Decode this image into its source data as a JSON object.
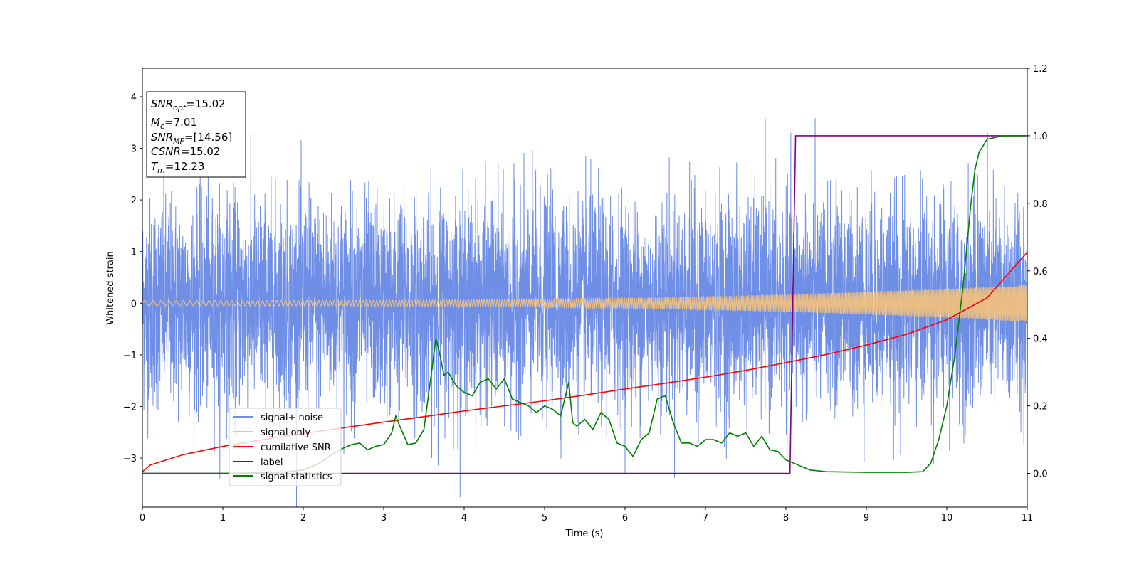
{
  "chart_data": {
    "type": "line",
    "xlabel": "Time (s)",
    "ylabel": "Whitened strain",
    "xlim": [
      0,
      11
    ],
    "ylim_left": [
      -3.95,
      4.55
    ],
    "ylim_right": [
      -0.1,
      1.2
    ],
    "x_ticks": [
      0,
      1,
      2,
      3,
      4,
      5,
      6,
      7,
      8,
      9,
      10,
      11
    ],
    "y_left_ticks": [
      -3,
      -2,
      -1,
      0,
      1,
      2,
      3,
      4
    ],
    "y_right_ticks": [
      0.0,
      0.2,
      0.4,
      0.6,
      0.8,
      1.0,
      1.2
    ],
    "legend_position": "lower-left",
    "info_box": {
      "position": "upper-left",
      "lines": [
        {
          "sym": "SNR",
          "sub": "opt",
          "rest": "=15.02"
        },
        {
          "sym": "M",
          "sub": "c",
          "rest": "=7.01"
        },
        {
          "sym": "SNR",
          "sub": "MF",
          "rest": "=[14.56]"
        },
        {
          "sym": "CSNR",
          "sub": "",
          "rest": "=15.02"
        },
        {
          "sym": "T",
          "sub": "m",
          "rest": "=12.23"
        }
      ]
    },
    "series": [
      {
        "name": "signal+ noise",
        "axis": "left",
        "color": "#6f8ee6",
        "description_kind": "noise",
        "sigma": 1.0
      },
      {
        "name": "signal only",
        "axis": "left",
        "color": "#f5c27a",
        "description_kind": "chirp",
        "amplitude_start": 0.05,
        "amplitude_end": 0.36
      },
      {
        "name": "cumilative SNR",
        "axis": "right",
        "color": "#ff0000",
        "x": [
          0,
          0.1,
          0.5,
          1,
          1.5,
          2,
          2.5,
          3,
          3.5,
          4,
          4.5,
          5,
          5.5,
          6,
          6.5,
          7,
          7.5,
          8,
          8.5,
          9,
          9.5,
          10,
          10.5,
          11
        ],
        "y": [
          0.005,
          0.025,
          0.055,
          0.08,
          0.1,
          0.118,
          0.135,
          0.152,
          0.168,
          0.185,
          0.2,
          0.215,
          0.232,
          0.25,
          0.267,
          0.285,
          0.305,
          0.328,
          0.352,
          0.38,
          0.412,
          0.455,
          0.52,
          0.655
        ]
      },
      {
        "name": "label",
        "axis": "right",
        "color": "#800080",
        "x": [
          0,
          8.05,
          8.12,
          11
        ],
        "y": [
          0,
          0,
          1,
          1
        ]
      },
      {
        "name": "signal statistics",
        "axis": "right",
        "color": "#008000",
        "x": [
          0,
          1.0,
          1.5,
          1.8,
          2.0,
          2.2,
          2.35,
          2.5,
          2.6,
          2.7,
          2.8,
          2.9,
          3.0,
          3.1,
          3.15,
          3.2,
          3.3,
          3.4,
          3.5,
          3.6,
          3.65,
          3.7,
          3.75,
          3.8,
          3.9,
          4.0,
          4.1,
          4.2,
          4.3,
          4.4,
          4.5,
          4.6,
          4.7,
          4.8,
          4.9,
          5.0,
          5.1,
          5.2,
          5.3,
          5.35,
          5.4,
          5.5,
          5.6,
          5.7,
          5.8,
          5.9,
          6.0,
          6.1,
          6.2,
          6.3,
          6.4,
          6.5,
          6.6,
          6.7,
          6.8,
          6.9,
          7.0,
          7.1,
          7.2,
          7.3,
          7.4,
          7.5,
          7.6,
          7.7,
          7.8,
          7.9,
          8.0,
          8.1,
          8.2,
          8.3,
          8.5,
          9.0,
          9.5,
          9.7,
          9.8,
          9.9,
          10.0,
          10.1,
          10.2,
          10.3,
          10.35,
          10.4,
          10.5,
          10.7,
          11.0
        ],
        "y": [
          0,
          0,
          0.002,
          0.005,
          0.01,
          0.03,
          0.055,
          0.075,
          0.085,
          0.09,
          0.07,
          0.08,
          0.085,
          0.12,
          0.17,
          0.14,
          0.085,
          0.09,
          0.13,
          0.31,
          0.4,
          0.35,
          0.29,
          0.3,
          0.26,
          0.24,
          0.23,
          0.27,
          0.28,
          0.25,
          0.28,
          0.22,
          0.21,
          0.2,
          0.18,
          0.2,
          0.19,
          0.17,
          0.27,
          0.15,
          0.14,
          0.16,
          0.13,
          0.18,
          0.16,
          0.09,
          0.08,
          0.05,
          0.1,
          0.12,
          0.22,
          0.23,
          0.15,
          0.09,
          0.09,
          0.08,
          0.1,
          0.1,
          0.09,
          0.12,
          0.11,
          0.12,
          0.08,
          0.11,
          0.07,
          0.065,
          0.04,
          0.03,
          0.02,
          0.01,
          0.005,
          0.003,
          0.003,
          0.005,
          0.03,
          0.1,
          0.2,
          0.35,
          0.55,
          0.8,
          0.9,
          0.95,
          0.99,
          1.0,
          1.0
        ]
      }
    ]
  }
}
